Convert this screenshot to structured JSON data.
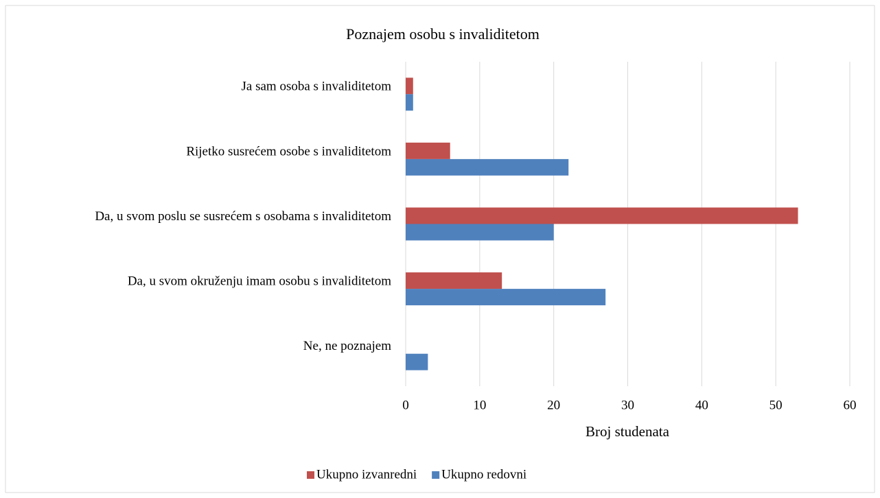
{
  "chart_data": {
    "type": "barh",
    "title": "Poznajem osobu s invaliditetom",
    "xlabel": "Broj studenata",
    "categories": [
      "Ja sam osoba s invaliditetom",
      "Rijetko susrećem osobe s invaliditetom",
      "Da, u svom poslu se susrećem s osobama s invaliditetom",
      "Da, u svom okruženju imam osobu s invaliditetom",
      "Ne, ne poznajem"
    ],
    "series": [
      {
        "name": "Ukupno izvanredni",
        "color": "#c0504d",
        "values": [
          1,
          6,
          53,
          13,
          0
        ]
      },
      {
        "name": "Ukupno redovni",
        "color": "#4f81bd",
        "values": [
          1,
          22,
          20,
          27,
          3
        ]
      }
    ],
    "xlim": [
      0,
      60
    ],
    "xticks": [
      0,
      10,
      20,
      30,
      40,
      50,
      60
    ],
    "grid": true,
    "legend": "bottom"
  }
}
